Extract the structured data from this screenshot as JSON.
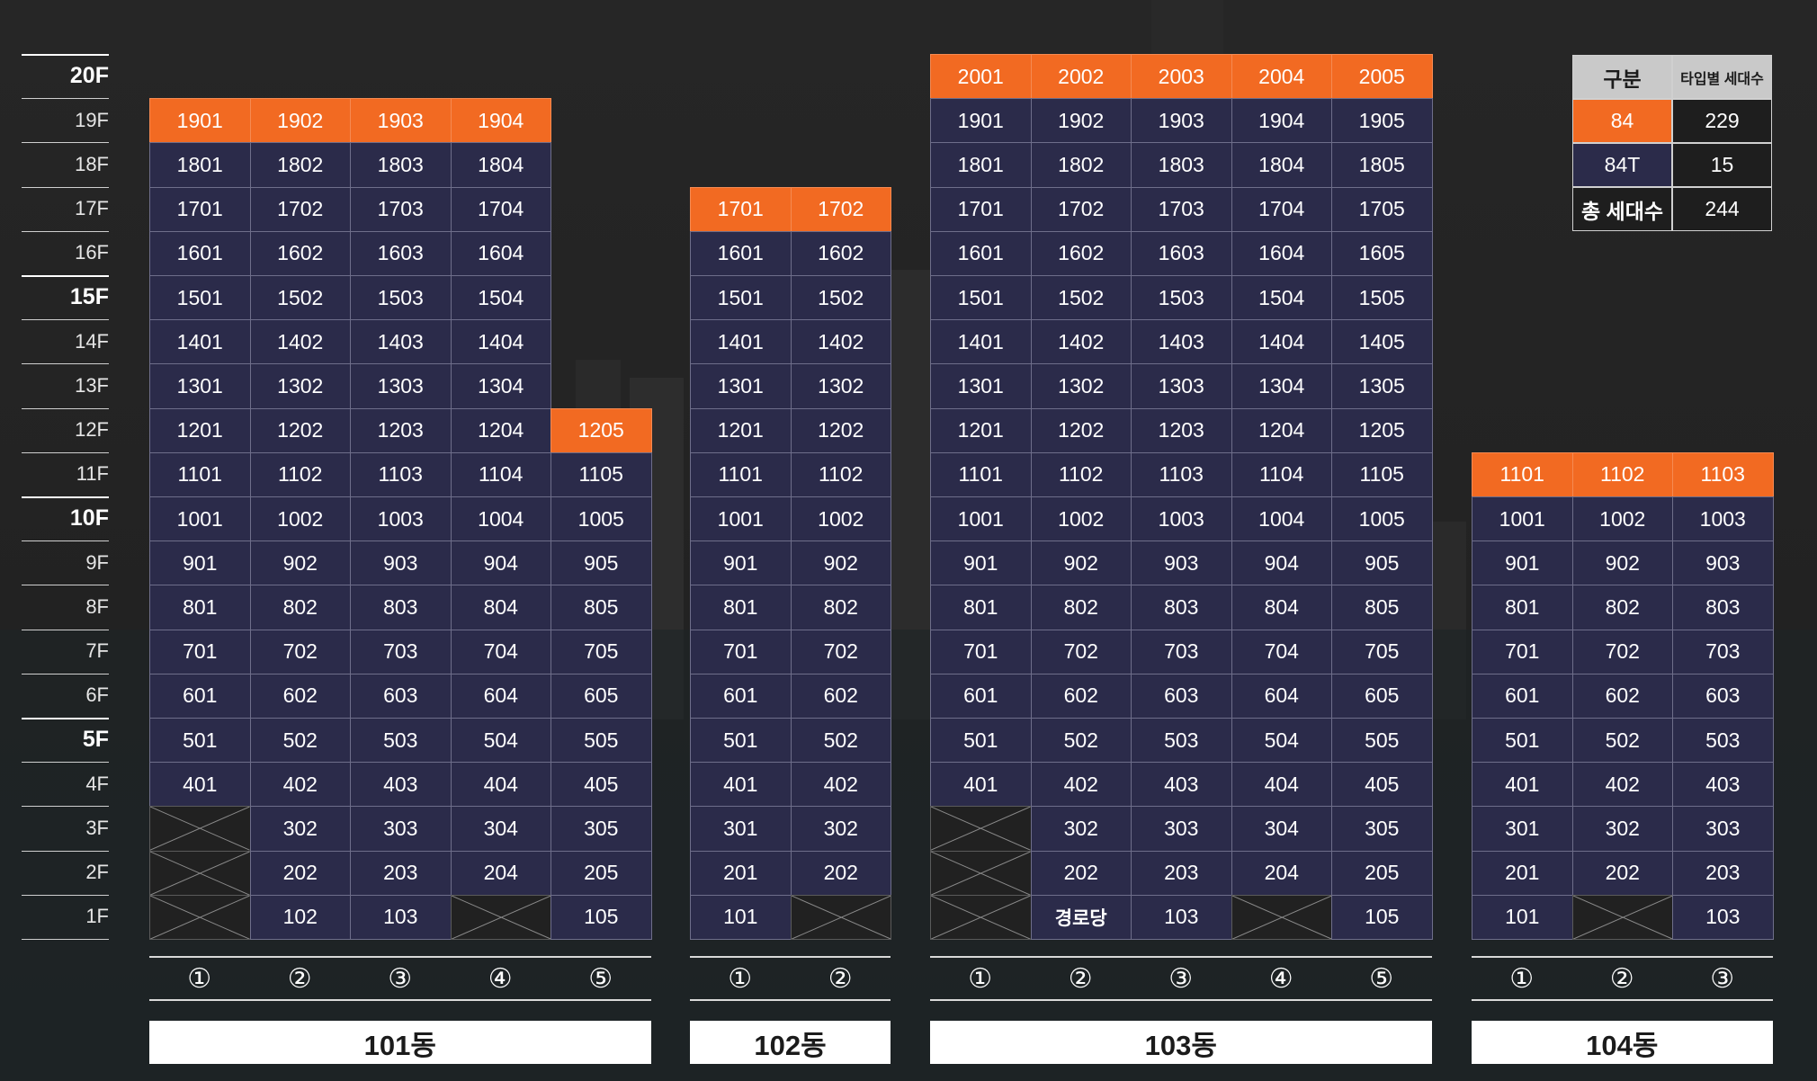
{
  "floors": [
    {
      "label": "20F",
      "major": true
    },
    {
      "label": "19F",
      "major": false
    },
    {
      "label": "18F",
      "major": false
    },
    {
      "label": "17F",
      "major": false
    },
    {
      "label": "16F",
      "major": false
    },
    {
      "label": "15F",
      "major": true
    },
    {
      "label": "14F",
      "major": false
    },
    {
      "label": "13F",
      "major": false
    },
    {
      "label": "12F",
      "major": false
    },
    {
      "label": "11F",
      "major": false
    },
    {
      "label": "10F",
      "major": true
    },
    {
      "label": "9F",
      "major": false
    },
    {
      "label": "8F",
      "major": false
    },
    {
      "label": "7F",
      "major": false
    },
    {
      "label": "6F",
      "major": false
    },
    {
      "label": "5F",
      "major": true
    },
    {
      "label": "4F",
      "major": false
    },
    {
      "label": "3F",
      "major": false
    },
    {
      "label": "2F",
      "major": false
    },
    {
      "label": "1F",
      "major": false
    }
  ],
  "colors": {
    "unit_84": "#2b2b4a",
    "unit_84T": "#f26a22",
    "empty": "#212121",
    "label_bg": "#ffffff",
    "legend_header": "#c9c9c9"
  },
  "buildings": [
    {
      "name": "101동",
      "line_labels": [
        "①",
        "②",
        "③",
        "④",
        "⑤"
      ],
      "lines": [
        {
          "top": 19,
          "top_type": "84T",
          "exceptions": {
            "1": null,
            "2": null,
            "3": null
          }
        },
        {
          "top": 19,
          "top_type": "84T",
          "exceptions": {}
        },
        {
          "top": 19,
          "top_type": "84T",
          "exceptions": {}
        },
        {
          "top": 19,
          "top_type": "84T",
          "exceptions": {
            "1": null
          }
        },
        {
          "top": 12,
          "top_type": "84T",
          "exceptions": {}
        }
      ]
    },
    {
      "name": "102동",
      "line_labels": [
        "①",
        "②"
      ],
      "lines": [
        {
          "top": 17,
          "top_type": "84T",
          "exceptions": {}
        },
        {
          "top": 17,
          "top_type": "84T",
          "exceptions": {
            "1": null
          }
        }
      ]
    },
    {
      "name": "103동",
      "line_labels": [
        "①",
        "②",
        "③",
        "④",
        "⑤"
      ],
      "lines": [
        {
          "top": 20,
          "top_type": "84T",
          "exceptions": {
            "1": null,
            "2": null,
            "3": null
          }
        },
        {
          "top": 20,
          "top_type": "84T",
          "exceptions": {
            "1": "경로당"
          }
        },
        {
          "top": 20,
          "top_type": "84T",
          "exceptions": {}
        },
        {
          "top": 20,
          "top_type": "84T",
          "exceptions": {
            "1": null
          }
        },
        {
          "top": 20,
          "top_type": "84T",
          "exceptions": {}
        }
      ]
    },
    {
      "name": "104동",
      "line_labels": [
        "①",
        "②",
        "③"
      ],
      "lines": [
        {
          "top": 11,
          "top_type": "84T",
          "exceptions": {}
        },
        {
          "top": 11,
          "top_type": "84T",
          "exceptions": {
            "1": null
          }
        },
        {
          "top": 11,
          "top_type": "84T",
          "exceptions": {}
        }
      ]
    }
  ],
  "legend": {
    "header": [
      "구분",
      "타입별 세대수"
    ],
    "rows": [
      {
        "label": "84",
        "count": "229",
        "type": "84"
      },
      {
        "label": "84T",
        "count": "15",
        "type": "84T"
      },
      {
        "label": "총 세대수",
        "count": "244",
        "type": "total"
      }
    ]
  }
}
